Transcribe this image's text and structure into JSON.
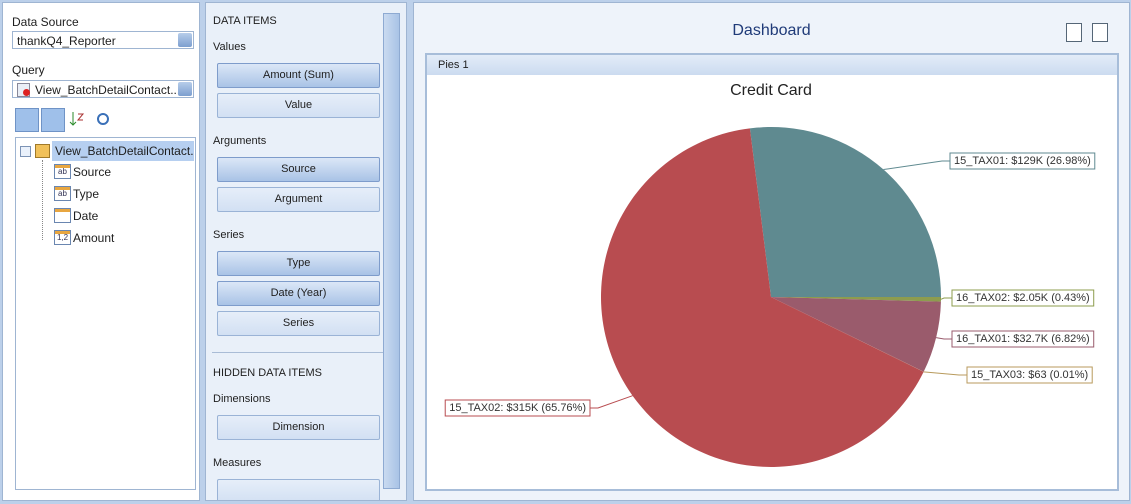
{
  "left_panel": {
    "data_source_label": "Data Source",
    "data_source": "thankQ4_Reporter",
    "query_label": "Query",
    "query": "View_BatchDetailContact...",
    "tree": {
      "root": "View_BatchDetailContact...",
      "fields": [
        {
          "icon": "ab",
          "name": "Source"
        },
        {
          "icon": "ab",
          "name": "Type"
        },
        {
          "name": "Date"
        },
        {
          "icon": "1,2",
          "name": "Amount"
        }
      ]
    }
  },
  "data_items_panel": {
    "title": "DATA ITEMS",
    "sections": [
      {
        "label": "Values",
        "items": [
          "Amount (Sum)",
          "Value"
        ]
      },
      {
        "label": "Arguments",
        "items": [
          "Source",
          "Argument"
        ]
      },
      {
        "label": "Series",
        "items": [
          "Type",
          "Date (Year)",
          "Series"
        ]
      }
    ],
    "hidden_title": "HIDDEN DATA ITEMS",
    "hidden_sections": [
      {
        "label": "Dimensions",
        "items": [
          "Dimension"
        ]
      },
      {
        "label": "Measures"
      }
    ]
  },
  "dashboard": {
    "title": "Dashboard",
    "item_caption": "Pies 1"
  },
  "chart_data": {
    "type": "pie",
    "title": "Credit Card",
    "values": [
      26.98,
      0.43,
      6.82,
      0.01,
      65.76
    ],
    "value_labels": [
      "15_TAX01: $129K (26.98%)",
      "16_TAX02: $2.05K (0.43%)",
      "16_TAX01: $32.7K (6.82%)",
      "15_TAX03: $63 (0.01%)",
      "15_TAX02: $315K (65.76%)"
    ],
    "colors": [
      "#5f8a90",
      "#8d9c4e",
      "#9a5b6c",
      "#b89a5c",
      "#b84c50"
    ]
  }
}
